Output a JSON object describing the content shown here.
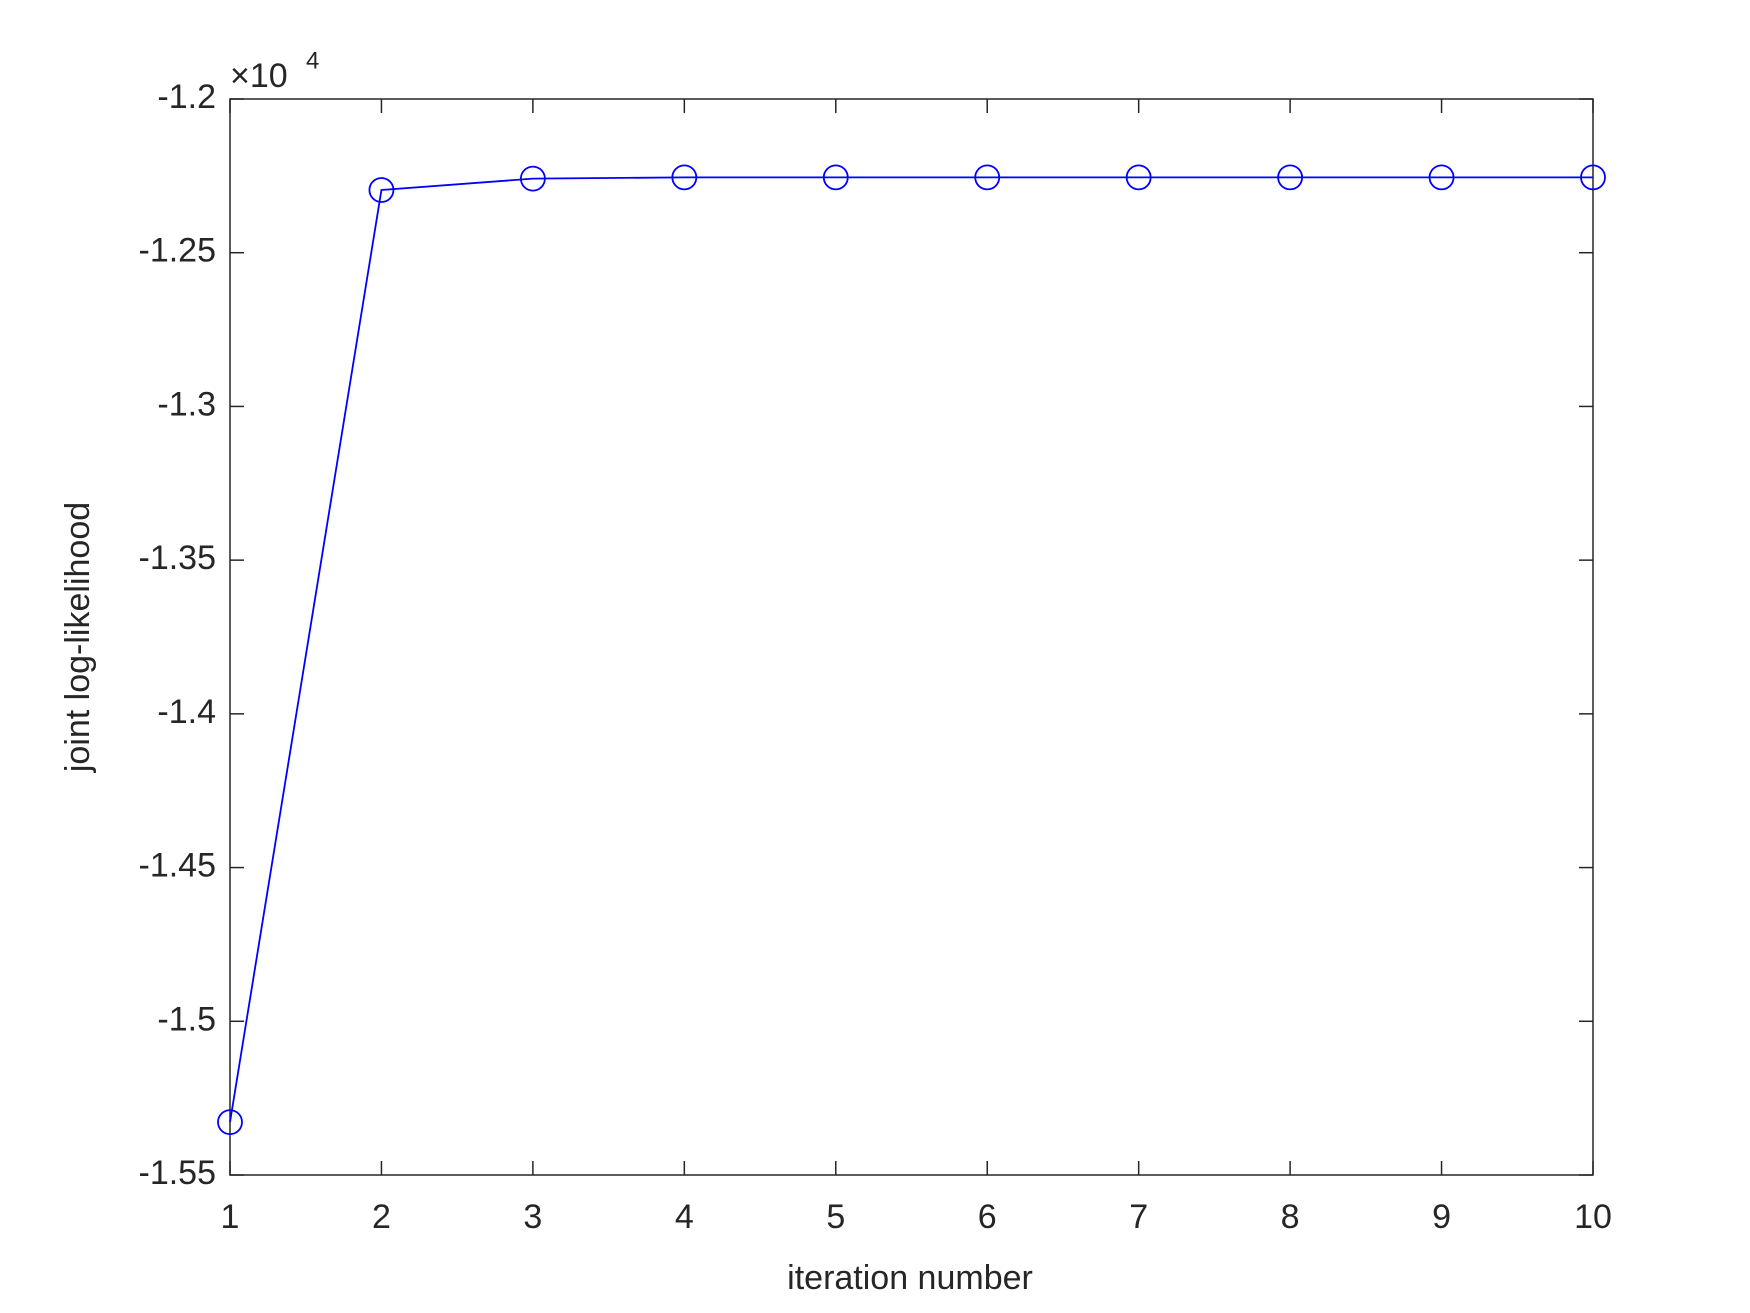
{
  "chart_data": {
    "type": "line",
    "xlabel": "iteration number",
    "ylabel": "joint log-likelihood",
    "y_multiplier": "×10",
    "y_exponent": "4",
    "x": [
      1,
      2,
      3,
      4,
      5,
      6,
      7,
      8,
      9,
      10
    ],
    "series": [
      {
        "name": "joint log-likelihood",
        "color": "#0000ff",
        "marker": "circle",
        "values": [
          -1.5328,
          -1.2296,
          -1.2259,
          -1.2255,
          -1.2255,
          -1.2255,
          -1.2255,
          -1.2255,
          -1.2255,
          -1.2255
        ]
      }
    ],
    "xlim": [
      1,
      10
    ],
    "xticks": [
      1,
      2,
      3,
      4,
      5,
      6,
      7,
      8,
      9,
      10
    ],
    "ylim": [
      -1.55,
      -1.2
    ],
    "yticks": [
      -1.55,
      -1.5,
      -1.45,
      -1.4,
      -1.35,
      -1.3,
      -1.25,
      -1.2
    ],
    "grid": false
  }
}
